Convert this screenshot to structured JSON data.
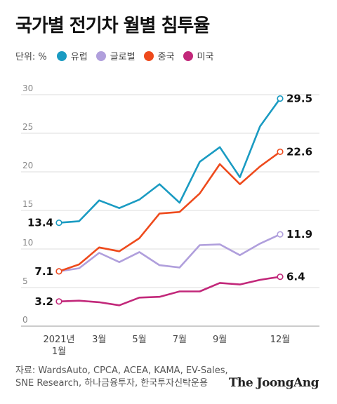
{
  "title": "국가별 전기차 월별 침투율",
  "unit_label": "단위: %",
  "source_line1": "자료: WardsAuto, CPCA, ACEA, KAMA, EV-Sales,",
  "source_line2": "SNE Research, 하나금융투자, 한국투자신탁운용",
  "logo": "The JoongAng",
  "chart_data": {
    "type": "line",
    "title": "국가별 전기차 월별 침투율",
    "ylabel": "단위: %",
    "ylim": [
      0,
      30
    ],
    "yticks": [
      0,
      5,
      10,
      15,
      20,
      25,
      30
    ],
    "grid": true,
    "legend_position": "top",
    "x": [
      1,
      2,
      3,
      4,
      5,
      6,
      7,
      8,
      9,
      10,
      11,
      12
    ],
    "xtick_labels": [
      {
        "x": 1,
        "lines": [
          "2021년",
          "1월"
        ]
      },
      {
        "x": 3,
        "lines": [
          "3월"
        ]
      },
      {
        "x": 5,
        "lines": [
          "5월"
        ]
      },
      {
        "x": 7,
        "lines": [
          "7월"
        ]
      },
      {
        "x": 9,
        "lines": [
          "9월"
        ]
      },
      {
        "x": 12,
        "lines": [
          "12월"
        ]
      }
    ],
    "series": [
      {
        "name": "유럽",
        "color": "#1a9bc2",
        "values": [
          13.4,
          13.6,
          16.3,
          15.3,
          16.4,
          18.4,
          16.0,
          21.3,
          23.2,
          19.3,
          25.9,
          29.5
        ],
        "start_label": "13.4",
        "end_label": "29.5"
      },
      {
        "name": "글로벌",
        "color": "#b09fdc",
        "values": [
          7.1,
          7.5,
          9.5,
          8.3,
          9.6,
          7.9,
          7.6,
          10.5,
          10.6,
          9.2,
          10.7,
          11.9
        ],
        "start_label": "7.1",
        "end_label": "11.9"
      },
      {
        "name": "중국",
        "color": "#ee4a1c",
        "values": [
          7.1,
          8.0,
          10.2,
          9.7,
          11.4,
          14.6,
          14.8,
          17.2,
          21.0,
          18.4,
          20.7,
          22.6
        ],
        "start_label": "7.1",
        "end_label": "22.6"
      },
      {
        "name": "미국",
        "color": "#c2287a",
        "values": [
          3.2,
          3.3,
          3.1,
          2.7,
          3.7,
          3.8,
          4.5,
          4.5,
          5.6,
          5.4,
          6.0,
          6.4
        ],
        "start_label": "3.2",
        "end_label": "6.4"
      }
    ]
  }
}
